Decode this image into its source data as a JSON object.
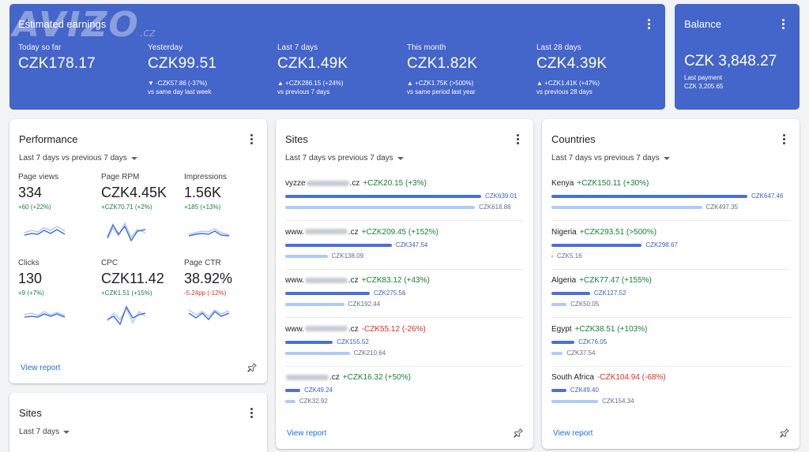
{
  "estimated": {
    "title": "Estimated earnings",
    "metrics": [
      {
        "label": "Today so far",
        "value": "CZK178.17",
        "delta": "",
        "compare": ""
      },
      {
        "label": "Yesterday",
        "value": "CZK99.51",
        "delta": "▼ -CZK57.86 (-37%)",
        "compare": "vs same day last week"
      },
      {
        "label": "Last 7 days",
        "value": "CZK1.49K",
        "delta": "▲ +CZK286.15 (+24%)",
        "compare": "vs previous 7 days"
      },
      {
        "label": "This month",
        "value": "CZK1.82K",
        "delta": "▲ +CZK1.75K (>500%)",
        "compare": "vs same period last year"
      },
      {
        "label": "Last 28 days",
        "value": "CZK4.39K",
        "delta": "▲ +CZK1.41K (+47%)",
        "compare": "vs previous 28 days"
      }
    ]
  },
  "watermark": {
    "text": "AVIZO",
    "suffix": ".cz"
  },
  "balance": {
    "title": "Balance",
    "value": "CZK 3,848.27",
    "last_payment_label": "Last payment",
    "last_payment_value": "CZK 3,205.65"
  },
  "performance": {
    "title": "Performance",
    "range": "Last 7 days vs previous 7 days",
    "metrics": [
      {
        "label": "Page views",
        "value": "334",
        "delta": "+60 (+22%)",
        "trend": "pos"
      },
      {
        "label": "Page RPM",
        "value": "CZK4.45K",
        "delta": "+CZK70.71 (+2%)",
        "trend": "pos"
      },
      {
        "label": "Impressions",
        "value": "1.56K",
        "delta": "+185 (+13%)",
        "trend": "pos"
      },
      {
        "label": "Clicks",
        "value": "130",
        "delta": "+9 (+7%)",
        "trend": "pos"
      },
      {
        "label": "CPC",
        "value": "CZK11.42",
        "delta": "+CZK1.51 (+15%)",
        "trend": "pos"
      },
      {
        "label": "Page CTR",
        "value": "38.92%",
        "delta": "-5.24pp (-12%)",
        "trend": "neg"
      }
    ],
    "view_report": "View report"
  },
  "sites_small": {
    "title": "Sites",
    "range": "Last 7 days"
  },
  "sites": {
    "title": "Sites",
    "range": "Last 7 days vs previous 7 days",
    "rows": [
      {
        "prefix": "vyzze",
        "suffix": ".cz",
        "delta": "+CZK20.15 (+3%)",
        "trend": "pos",
        "current": "CZK639.01",
        "previous": "CZK618.86",
        "cur_val": 639.01,
        "prev_val": 618.86
      },
      {
        "prefix": "www.",
        "suffix": ".cz",
        "delta": "+CZK209.45 (+152%)",
        "trend": "pos",
        "current": "CZK347.54",
        "previous": "CZK138.09",
        "cur_val": 347.54,
        "prev_val": 138.09
      },
      {
        "prefix": "www.",
        "suffix": ".cz",
        "delta": "+CZK83.12 (+43%)",
        "trend": "pos",
        "current": "CZK275.56",
        "previous": "CZK192.44",
        "cur_val": 275.56,
        "prev_val": 192.44
      },
      {
        "prefix": "www.",
        "suffix": ".cz",
        "delta": "-CZK55.12 (-26%)",
        "trend": "neg",
        "current": "CZK155.52",
        "previous": "CZK210.64",
        "cur_val": 155.52,
        "prev_val": 210.64
      },
      {
        "prefix": "",
        "suffix": ".cz",
        "delta": "+CZK16.32 (+50%)",
        "trend": "pos",
        "current": "CZK49.24",
        "previous": "CZK32.92",
        "cur_val": 49.24,
        "prev_val": 32.92
      }
    ],
    "max_val": 639.01,
    "view_report": "View report"
  },
  "countries": {
    "title": "Countries",
    "range": "Last 7 days vs previous 7 days",
    "rows": [
      {
        "name": "Kenya",
        "delta": "+CZK150.11 (+30%)",
        "trend": "pos",
        "current": "CZK647.46",
        "previous": "CZK497.35",
        "cur_val": 647.46,
        "prev_val": 497.35
      },
      {
        "name": "Nigeria",
        "delta": "+CZK293.51 (>500%)",
        "trend": "pos",
        "current": "CZK298.67",
        "previous": "CZK5.16",
        "cur_val": 298.67,
        "prev_val": 5.16
      },
      {
        "name": "Algeria",
        "delta": "+CZK77.47 (+155%)",
        "trend": "pos",
        "current": "CZK127.52",
        "previous": "CZK50.05",
        "cur_val": 127.52,
        "prev_val": 50.05
      },
      {
        "name": "Egypt",
        "delta": "+CZK38.51 (+103%)",
        "trend": "pos",
        "current": "CZK76.05",
        "previous": "CZK37.54",
        "cur_val": 76.05,
        "prev_val": 37.54
      },
      {
        "name": "South Africa",
        "delta": "-CZK104.94 (-68%)",
        "trend": "neg",
        "current": "CZK49.40",
        "previous": "CZK154.34",
        "cur_val": 49.4,
        "prev_val": 154.34
      }
    ],
    "max_val": 647.46,
    "view_report": "View report"
  },
  "colors": {
    "header_blue": "#4465c9",
    "bar_current": "#4b6fd6",
    "bar_previous": "#aecbfa",
    "positive": "#188038",
    "negative": "#d93025",
    "link": "#1a73e8"
  }
}
